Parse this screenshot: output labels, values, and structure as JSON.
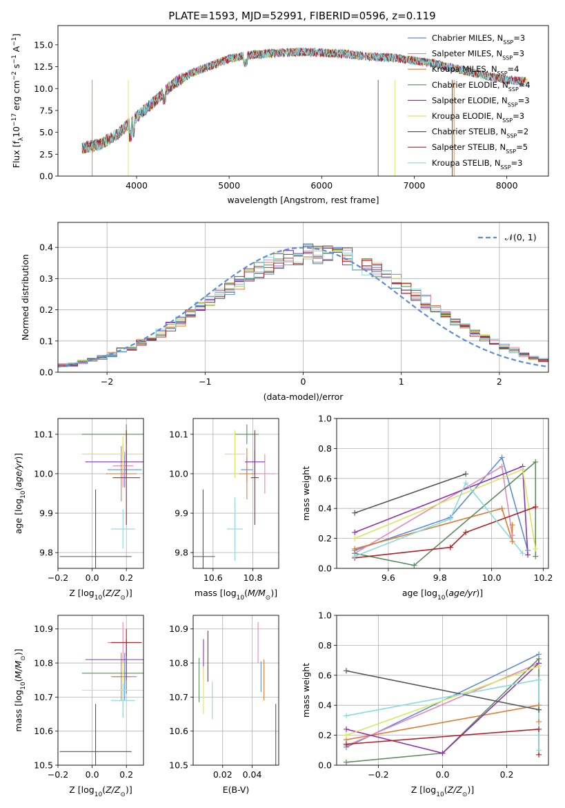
{
  "figure_title": "PLATE=1593, MJD=52991, FIBERID=0596, z=0.119",
  "colors": {
    "Chabrier MILES": "#5b8bd9",
    "Salpeter MILES": "#e985b8",
    "Kroupa MILES": "#e07a2e",
    "Chabrier ELODIE": "#5a8a5e",
    "Salpeter ELODIE": "#8f2fb0",
    "Kroupa ELODIE": "#d6e85a",
    "Chabrier STELIB": "#555555",
    "Salpeter STELIB": "#b01e22",
    "Kroupa STELIB": "#86dbe0"
  },
  "chart_data": [
    {
      "id": "spectrum",
      "type": "line",
      "xlabel": "wavelength [Angstrom, rest frame]",
      "ylabel": "Flux [f_λ 10^-17 erg cm^-2 s^-1 A^-1]",
      "xlim": [
        3150,
        8450
      ],
      "ylim": [
        0,
        17.2
      ],
      "xticks": [
        4000,
        5000,
        6000,
        7000,
        8000
      ],
      "yticks": [
        0.0,
        2.5,
        5.0,
        7.5,
        10.0,
        12.5,
        15.0
      ],
      "grid": false,
      "legend_position": "right",
      "series": [
        {
          "name": "Chabrier MILES, N_SSP=3",
          "legend_label": "Chabrier MILES, N",
          "legend_sub": "SSP",
          "legend_tail": "=3"
        },
        {
          "name": "Salpeter MILES, N_SSP=3",
          "legend_label": "Salpeter MILES, N",
          "legend_sub": "SSP",
          "legend_tail": "=3"
        },
        {
          "name": "Kroupa MILES, N_SSP=4",
          "legend_label": "Kroupa MILES, N",
          "legend_sub": "SSP",
          "legend_tail": "=4"
        },
        {
          "name": "Chabrier ELODIE, N_SSP=4",
          "legend_label": "Chabrier ELODIE, N",
          "legend_sub": "SSP",
          "legend_tail": "=4"
        },
        {
          "name": "Salpeter ELODIE, N_SSP=3",
          "legend_label": "Salpeter ELODIE, N",
          "legend_sub": "SSP",
          "legend_tail": "=3"
        },
        {
          "name": "Kroupa ELODIE, N_SSP=3",
          "legend_label": "Kroupa ELODIE, N",
          "legend_sub": "SSP",
          "legend_tail": "=3"
        },
        {
          "name": "Chabrier STELIB, N_SSP=2",
          "legend_label": "Chabrier STELIB, N",
          "legend_sub": "SSP",
          "legend_tail": "=2"
        },
        {
          "name": "Salpeter STELIB, N_SSP=5",
          "legend_label": "Salpeter STELIB, N",
          "legend_sub": "SSP",
          "legend_tail": "=5"
        },
        {
          "name": "Kroupa STELIB, N_SSP=3",
          "legend_label": "Kroupa STELIB, N",
          "legend_sub": "SSP",
          "legend_tail": "=3"
        }
      ],
      "continuum": {
        "x": [
          3400,
          3600,
          3800,
          4000,
          4200,
          4400,
          4600,
          4800,
          5000,
          5200,
          5400,
          5600,
          5800,
          6000,
          6200,
          6400,
          6600,
          6800,
          7000,
          7200,
          7400,
          7600,
          7800,
          8000,
          8200
        ],
        "y": [
          3.2,
          3.6,
          4.8,
          6.8,
          8.6,
          10.6,
          11.8,
          12.6,
          13.4,
          13.8,
          14.0,
          14.1,
          14.2,
          14.1,
          14.0,
          13.8,
          13.6,
          13.5,
          13.2,
          12.9,
          12.4,
          11.9,
          11.4,
          11.0,
          10.8
        ]
      }
    },
    {
      "id": "residuals",
      "type": "line",
      "xlabel": "(data-model)/error",
      "ylabel": "Normed distribution",
      "xlim": [
        -2.5,
        2.5
      ],
      "ylim": [
        0,
        0.48
      ],
      "xticks": [
        -2,
        -1,
        0,
        1,
        2
      ],
      "yticks": [
        0.0,
        0.1,
        0.2,
        0.3,
        0.4
      ],
      "grid": true,
      "legend_position": "upper right",
      "reference_curve": {
        "name": "N(0,1)",
        "label": "𝒩(0, 1)",
        "mean": 0,
        "sigma": 1
      }
    },
    {
      "id": "age-vs-Z",
      "type": "scatter",
      "xlabel": "Z [log10(Z/Z⊙)]",
      "ylabel": "age [log10(age/yr)]",
      "xlim": [
        -0.2,
        0.3
      ],
      "ylim": [
        9.76,
        10.14
      ],
      "xticks": [
        -0.2,
        0.0,
        0.2
      ],
      "yticks": [
        9.8,
        9.9,
        10.0,
        10.1
      ],
      "grid": true,
      "points": [
        {
          "series": "Chabrier MILES",
          "x": 0.19,
          "y": 10.01,
          "xerr": 0.1,
          "yerr": 0.045
        },
        {
          "series": "Salpeter MILES",
          "x": 0.18,
          "y": 10.02,
          "xerr": 0.06,
          "yerr": 0.055
        },
        {
          "series": "Kroupa MILES",
          "x": 0.17,
          "y": 10.0,
          "xerr": 0.09,
          "yerr": 0.07
        },
        {
          "series": "Chabrier ELODIE",
          "x": 0.2,
          "y": 10.1,
          "xerr": 0.26,
          "yerr": 0.025
        },
        {
          "series": "Salpeter ELODIE",
          "x": 0.2,
          "y": 10.03,
          "xerr": 0.24,
          "yerr": 0.03
        },
        {
          "series": "Kroupa ELODIE",
          "x": 0.18,
          "y": 10.05,
          "xerr": 0.24,
          "yerr": 0.045
        },
        {
          "series": "Chabrier STELIB",
          "x": 0.02,
          "y": 9.79,
          "xerr": 0.21,
          "yerr": 0.17
        },
        {
          "series": "Salpeter STELIB",
          "x": 0.2,
          "y": 9.99,
          "xerr": 0.08,
          "yerr": 0.12
        },
        {
          "series": "Kroupa STELIB",
          "x": 0.18,
          "y": 9.86,
          "xerr": 0.07,
          "yerr": 0.05
        }
      ]
    },
    {
      "id": "age-vs-mass",
      "type": "scatter",
      "xlabel": "mass [log10(M/M⊙)]",
      "ylabel": "",
      "xlim": [
        10.5,
        10.93
      ],
      "ylim": [
        9.76,
        10.14
      ],
      "xticks": [
        10.6,
        10.8
      ],
      "yticks": [
        9.8,
        9.9,
        10.0,
        10.1
      ],
      "grid": true,
      "points": [
        {
          "series": "Chabrier MILES",
          "x": 10.77,
          "y": 10.01,
          "xerr": 0.03,
          "yerr": 0.03
        },
        {
          "series": "Salpeter MILES",
          "x": 10.86,
          "y": 10.0,
          "xerr": 0.05,
          "yerr": 0.05
        },
        {
          "series": "Kroupa MILES",
          "x": 10.77,
          "y": 10.0,
          "xerr": 0.04,
          "yerr": 0.065
        },
        {
          "series": "Chabrier ELODIE",
          "x": 10.77,
          "y": 10.1,
          "xerr": 0.06,
          "yerr": 0.025
        },
        {
          "series": "Salpeter ELODIE",
          "x": 10.81,
          "y": 10.03,
          "xerr": 0.05,
          "yerr": 0.03
        },
        {
          "series": "Kroupa ELODIE",
          "x": 10.71,
          "y": 10.05,
          "xerr": 0.05,
          "yerr": 0.06
        },
        {
          "series": "Chabrier STELIB",
          "x": 10.55,
          "y": 9.79,
          "xerr": 0.06,
          "yerr": 0.17
        },
        {
          "series": "Salpeter STELIB",
          "x": 10.81,
          "y": 9.99,
          "xerr": 0.02,
          "yerr": 0.12
        },
        {
          "series": "Kroupa STELIB",
          "x": 10.71,
          "y": 9.86,
          "xerr": 0.04,
          "yerr": 0.08
        }
      ]
    },
    {
      "id": "mass-weight-vs-age",
      "type": "line",
      "xlabel": "age [log10(age/yr)]",
      "ylabel": "mass weight",
      "xlim": [
        9.4,
        10.22
      ],
      "ylim": [
        0,
        1.0
      ],
      "xticks": [
        9.6,
        9.8,
        10.0,
        10.2
      ],
      "yticks": [
        0.0,
        0.2,
        0.4,
        0.6,
        0.8,
        1.0
      ],
      "grid": true,
      "series": [
        {
          "name": "Chabrier MILES",
          "x": [
            9.47,
            9.84,
            10.04,
            10.14
          ],
          "y": [
            0.12,
            0.34,
            0.74,
            0.12
          ]
        },
        {
          "name": "Salpeter MILES",
          "x": [
            9.47,
            10.04,
            10.08
          ],
          "y": [
            0.1,
            0.68,
            0.22
          ]
        },
        {
          "name": "Kroupa MILES",
          "x": [
            9.47,
            10.04,
            10.08,
            10.08
          ],
          "y": [
            0.13,
            0.4,
            0.18,
            0.29
          ]
        },
        {
          "name": "Chabrier ELODIE",
          "x": [
            9.47,
            9.7,
            10.17,
            10.17
          ],
          "y": [
            0.1,
            0.02,
            0.71,
            0.08
          ]
        },
        {
          "name": "Salpeter ELODIE",
          "x": [
            9.47,
            10.12,
            10.14
          ],
          "y": [
            0.24,
            0.68,
            0.09
          ]
        },
        {
          "name": "Kroupa ELODIE",
          "x": [
            9.47,
            10.12,
            10.17
          ],
          "y": [
            0.2,
            0.66,
            0.13
          ]
        },
        {
          "name": "Chabrier STELIB",
          "x": [
            9.47,
            9.9
          ],
          "y": [
            0.37,
            0.63
          ]
        },
        {
          "name": "Salpeter STELIB",
          "x": [
            9.47,
            9.84,
            9.9,
            10.17
          ],
          "y": [
            0.07,
            0.14,
            0.24,
            0.41
          ]
        },
        {
          "name": "Kroupa STELIB",
          "x": [
            9.47,
            9.84,
            9.9,
            10.12
          ],
          "y": [
            0.08,
            0.33,
            0.57,
            0.1
          ]
        }
      ]
    },
    {
      "id": "mass-vs-Z",
      "type": "scatter",
      "xlabel": "Z [log10(Z/Z⊙)]",
      "ylabel": "mass [log10(M/M⊙)]",
      "xlim": [
        -0.2,
        0.3
      ],
      "ylim": [
        10.5,
        10.94
      ],
      "xticks": [
        -0.2,
        0.0,
        0.2
      ],
      "yticks": [
        10.5,
        10.6,
        10.7,
        10.8,
        10.9
      ],
      "grid": true,
      "points": [
        {
          "series": "Chabrier MILES",
          "x": 0.19,
          "y": 10.76,
          "xerr": 0.07,
          "yerr": 0.07
        },
        {
          "series": "Salpeter MILES",
          "x": 0.18,
          "y": 10.86,
          "xerr": 0.09,
          "yerr": 0.06
        },
        {
          "series": "Kroupa MILES",
          "x": 0.17,
          "y": 10.76,
          "xerr": 0.06,
          "yerr": 0.07
        },
        {
          "series": "Chabrier ELODIE",
          "x": 0.2,
          "y": 10.77,
          "xerr": 0.26,
          "yerr": 0.06
        },
        {
          "series": "Salpeter ELODIE",
          "x": 0.2,
          "y": 10.81,
          "xerr": 0.24,
          "yerr": 0.06
        },
        {
          "series": "Kroupa ELODIE",
          "x": 0.18,
          "y": 10.72,
          "xerr": 0.24,
          "yerr": 0.08
        },
        {
          "series": "Chabrier STELIB",
          "x": 0.02,
          "y": 10.54,
          "xerr": 0.21,
          "yerr": 0.14
        },
        {
          "series": "Salpeter STELIB",
          "x": 0.2,
          "y": 10.86,
          "xerr": 0.09,
          "yerr": 0.04
        },
        {
          "series": "Kroupa STELIB",
          "x": 0.18,
          "y": 10.69,
          "xerr": 0.07,
          "yerr": 0.05
        }
      ]
    },
    {
      "id": "mass-vs-EBV",
      "type": "scatter",
      "xlabel": "E(B-V)",
      "ylabel": "",
      "xlim": [
        0.0,
        0.058
      ],
      "ylim": [
        10.5,
        10.94
      ],
      "xticks": [
        0.02,
        0.04
      ],
      "yticks": [
        10.5,
        10.6,
        10.7,
        10.8,
        10.9
      ],
      "grid": true,
      "points": [
        {
          "series": "Chabrier MILES",
          "x": 0.046,
          "y": 10.76,
          "xerr": 0.0,
          "yerr": 0.045
        },
        {
          "series": "Salpeter MILES",
          "x": 0.044,
          "y": 10.86,
          "xerr": 0.0,
          "yerr": 0.06
        },
        {
          "series": "Kroupa MILES",
          "x": 0.048,
          "y": 10.75,
          "xerr": 0.0,
          "yerr": 0.06
        },
        {
          "series": "Chabrier ELODIE",
          "x": 0.004,
          "y": 10.75,
          "xerr": 0.0,
          "yerr": 0.065
        },
        {
          "series": "Salpeter ELODIE",
          "x": 0.007,
          "y": 10.81,
          "xerr": 0.0,
          "yerr": 0.06
        },
        {
          "series": "Kroupa ELODIE",
          "x": 0.007,
          "y": 10.72,
          "xerr": 0.0,
          "yerr": 0.07
        },
        {
          "series": "Chabrier STELIB",
          "x": 0.056,
          "y": 10.57,
          "xerr": 0.0,
          "yerr": 0.11
        },
        {
          "series": "Salpeter STELIB",
          "x": 0.01,
          "y": 10.82,
          "xerr": 0.0,
          "yerr": 0.075
        },
        {
          "series": "Kroupa STELIB",
          "x": 0.013,
          "y": 10.69,
          "xerr": 0.0,
          "yerr": 0.055
        }
      ]
    },
    {
      "id": "mass-weight-vs-Z",
      "type": "line",
      "xlabel": "Z [log10(Z/Z⊙)]",
      "ylabel": "mass weight",
      "xlim": [
        -0.33,
        0.33
      ],
      "ylim": [
        0,
        1.0
      ],
      "xticks": [
        -0.2,
        0.0,
        0.2
      ],
      "yticks": [
        0.0,
        0.2,
        0.4,
        0.6,
        0.8,
        1.0
      ],
      "grid": true,
      "series": [
        {
          "name": "Chabrier MILES",
          "x": [
            -0.3,
            0.3
          ],
          "y": [
            0.12,
            0.74
          ]
        },
        {
          "name": "Salpeter MILES",
          "x": [
            -0.3,
            0.3
          ],
          "y": [
            0.13,
            0.68
          ]
        },
        {
          "name": "Kroupa MILES",
          "x": [
            -0.3,
            0.3,
            0.3
          ],
          "y": [
            0.17,
            0.4,
            0.29
          ]
        },
        {
          "name": "Chabrier ELODIE",
          "x": [
            -0.3,
            0.0,
            0.3,
            0.3
          ],
          "y": [
            0.02,
            0.08,
            0.71,
            0.37
          ]
        },
        {
          "name": "Salpeter ELODIE",
          "x": [
            -0.3,
            0.0,
            0.3
          ],
          "y": [
            0.24,
            0.08,
            0.68
          ]
        },
        {
          "name": "Kroupa ELODIE",
          "x": [
            -0.3,
            0.3
          ],
          "y": [
            0.2,
            0.66
          ]
        },
        {
          "name": "Chabrier STELIB",
          "x": [
            -0.3,
            0.3
          ],
          "y": [
            0.63,
            0.37
          ]
        },
        {
          "name": "Salpeter STELIB",
          "x": [
            -0.3,
            0.3,
            0.3
          ],
          "y": [
            0.14,
            0.24,
            0.07
          ]
        },
        {
          "name": "Kroupa STELIB",
          "x": [
            -0.3,
            0.3,
            0.3
          ],
          "y": [
            0.33,
            0.57,
            0.1
          ]
        }
      ]
    }
  ]
}
